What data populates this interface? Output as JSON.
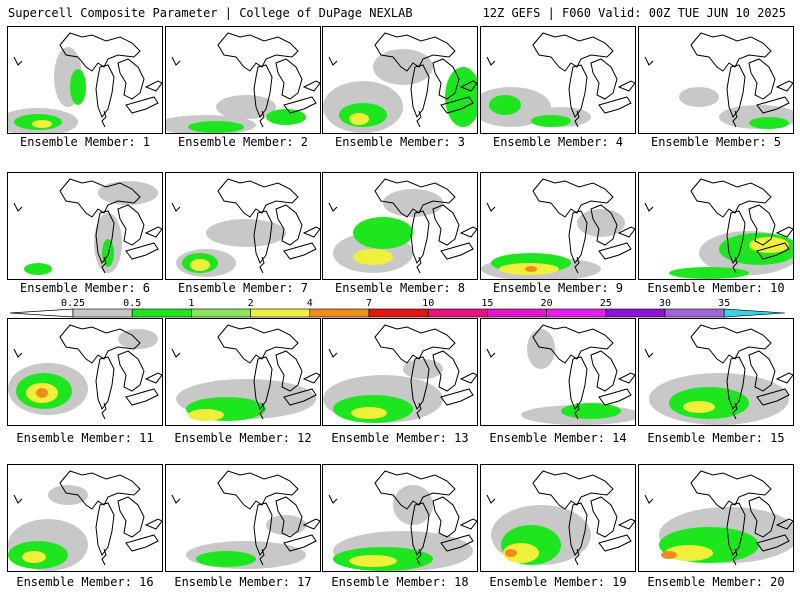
{
  "header": {
    "left": "Supercell Composite Parameter | College of DuPage NEXLAB",
    "right": "12Z GEFS | F060 Valid: 00Z TUE JUN 10 2025"
  },
  "legend": {
    "ticks": [
      "0.25",
      "0.5",
      "1",
      "2",
      "4",
      "7",
      "10",
      "15",
      "20",
      "25",
      "30",
      "35"
    ],
    "colors": [
      "#c8c8c8",
      "#1ee61e",
      "#8ce65a",
      "#f0f03c",
      "#f08c1e",
      "#e61414",
      "#e6147c",
      "#e614c8",
      "#e61ef0",
      "#8c14d2",
      "#a064dc",
      "#3cd2e6"
    ]
  },
  "members": [
    {
      "label": "Ensemble Member: 1"
    },
    {
      "label": "Ensemble Member: 2"
    },
    {
      "label": "Ensemble Member: 3"
    },
    {
      "label": "Ensemble Member: 4"
    },
    {
      "label": "Ensemble Member: 5"
    },
    {
      "label": "Ensemble Member: 6"
    },
    {
      "label": "Ensemble Member: 7"
    },
    {
      "label": "Ensemble Member: 8"
    },
    {
      "label": "Ensemble Member: 9"
    },
    {
      "label": "Ensemble Member: 10"
    },
    {
      "label": "Ensemble Member: 11"
    },
    {
      "label": "Ensemble Member: 12"
    },
    {
      "label": "Ensemble Member: 13"
    },
    {
      "label": "Ensemble Member: 14"
    },
    {
      "label": "Ensemble Member: 15"
    },
    {
      "label": "Ensemble Member: 16"
    },
    {
      "label": "Ensemble Member: 17"
    },
    {
      "label": "Ensemble Member: 18"
    },
    {
      "label": "Ensemble Member: 19"
    },
    {
      "label": "Ensemble Member: 20"
    }
  ]
}
